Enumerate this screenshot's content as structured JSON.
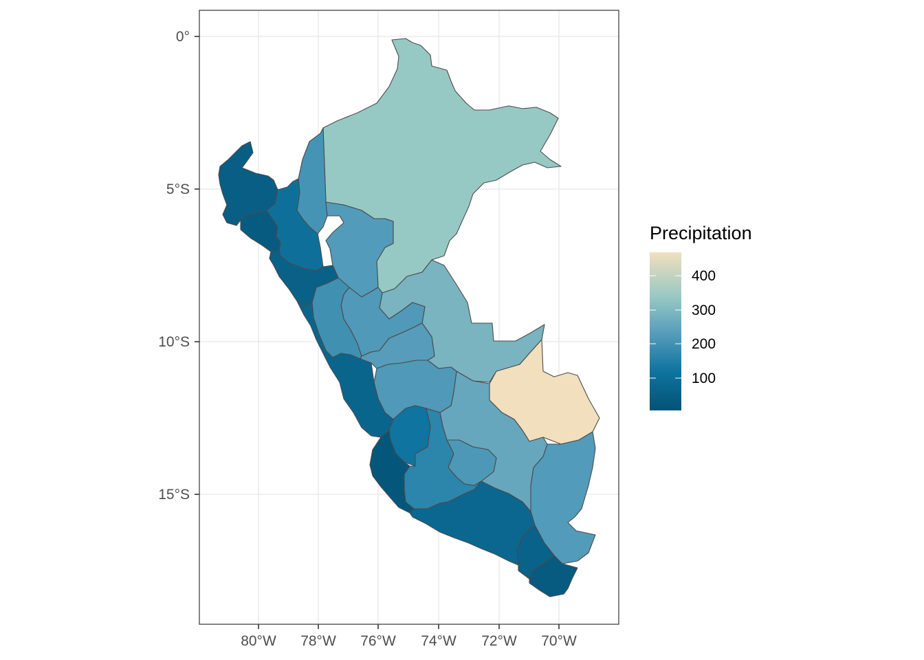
{
  "map": {
    "x_axis": {
      "ticks": [
        "80°W",
        "78°W",
        "76°W",
        "74°W",
        "72°W",
        "70°W"
      ]
    },
    "y_axis": {
      "ticks": [
        "0°",
        "5°S",
        "10°S",
        "15°S"
      ]
    },
    "grid": true,
    "colors": {
      "low": "#045275",
      "mid": "#3a9ab2",
      "high": "#f1dfbd",
      "border": "#4a4a4a"
    }
  },
  "legend": {
    "title": "Precipitation",
    "labels": [
      "400",
      "300",
      "200",
      "100"
    ],
    "min": 10,
    "max": 470
  },
  "regions": [
    {
      "id": "loreto",
      "value": 340
    },
    {
      "id": "ucayali",
      "value": 290
    },
    {
      "id": "madre-de-dios",
      "value": 470
    },
    {
      "id": "puno",
      "value": 230
    },
    {
      "id": "cusco",
      "value": 260
    },
    {
      "id": "amazonas",
      "value": 210
    },
    {
      "id": "san-martin",
      "value": 230
    },
    {
      "id": "huanuco",
      "value": 225
    },
    {
      "id": "pasco",
      "value": 235
    },
    {
      "id": "junin",
      "value": 225
    },
    {
      "id": "ancash",
      "value": 200
    },
    {
      "id": "huancavelica",
      "value": 125
    },
    {
      "id": "ayacucho",
      "value": 170
    },
    {
      "id": "apurimac",
      "value": 220
    },
    {
      "id": "tumbes-piura",
      "value": 50
    },
    {
      "id": "lambayeque",
      "value": 40
    },
    {
      "id": "cajamarca",
      "value": 110
    },
    {
      "id": "la-libertad",
      "value": 60
    },
    {
      "id": "lima",
      "value": 75
    },
    {
      "id": "ica",
      "value": 25
    },
    {
      "id": "arequipa",
      "value": 80
    },
    {
      "id": "moquegua",
      "value": 65
    },
    {
      "id": "tacna",
      "value": 40
    }
  ]
}
